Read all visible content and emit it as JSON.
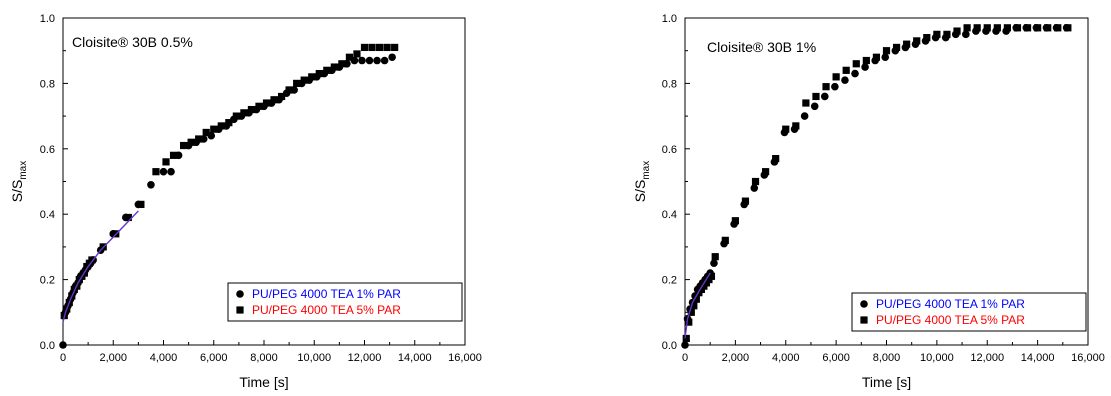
{
  "chart_data": [
    {
      "type": "scatter",
      "title": "",
      "annotation": "Cloisite® 30B 0.5%",
      "xlabel": "Time [s]",
      "ylabel_main": "S/S",
      "ylabel_sub": "max",
      "xlim": [
        0,
        16000
      ],
      "ylim": [
        0,
        1.0
      ],
      "xticks": [
        "0",
        "2,000",
        "4,000",
        "6,000",
        "8,000",
        "10,000",
        "12,000",
        "14,000",
        "16,000"
      ],
      "yticks": [
        "0.0",
        "0.2",
        "0.4",
        "0.6",
        "0.8",
        "1.0"
      ],
      "legend_position": "bottom-right",
      "fit_line": {
        "x": [
          0,
          100,
          300,
          600,
          1000,
          1500,
          2000,
          2500,
          3000
        ],
        "y": [
          0.07,
          0.1,
          0.14,
          0.19,
          0.24,
          0.29,
          0.33,
          0.37,
          0.41
        ],
        "color": "#6633cc"
      },
      "series": [
        {
          "name": "PU/PEG 4000 TEA 1% PAR",
          "marker": "circle",
          "color": "#0000ff",
          "x": [
            0,
            100,
            200,
            300,
            400,
            500,
            600,
            700,
            800,
            900,
            1000,
            1100,
            1200,
            1500,
            2000,
            2500,
            3000,
            3500,
            4000,
            4300,
            4600,
            5000,
            5300,
            5600,
            5900,
            6200,
            6500,
            6800,
            7100,
            7400,
            7700,
            8000,
            8300,
            8600,
            8900,
            9200,
            9500,
            9800,
            10100,
            10400,
            10700,
            11000,
            11300,
            11600,
            11900,
            12200,
            12500,
            12800,
            13100
          ],
          "y": [
            0.0,
            0.1,
            0.12,
            0.14,
            0.16,
            0.18,
            0.19,
            0.21,
            0.22,
            0.23,
            0.24,
            0.25,
            0.26,
            0.29,
            0.34,
            0.39,
            0.43,
            0.49,
            0.53,
            0.53,
            0.58,
            0.61,
            0.62,
            0.63,
            0.64,
            0.66,
            0.67,
            0.69,
            0.7,
            0.71,
            0.72,
            0.73,
            0.74,
            0.75,
            0.77,
            0.78,
            0.8,
            0.81,
            0.82,
            0.83,
            0.84,
            0.85,
            0.86,
            0.87,
            0.87,
            0.87,
            0.87,
            0.87,
            0.88
          ]
        },
        {
          "name": "PU/PEG 4000 TEA 5% PAR",
          "marker": "square",
          "color": "#ff0000",
          "x": [
            50,
            150,
            250,
            350,
            450,
            550,
            650,
            750,
            850,
            950,
            1050,
            1150,
            1600,
            2100,
            2600,
            3100,
            3700,
            4100,
            4400,
            4800,
            5100,
            5400,
            5700,
            6000,
            6300,
            6600,
            6900,
            7200,
            7500,
            7800,
            8100,
            8400,
            8700,
            9000,
            9300,
            9600,
            9900,
            10200,
            10500,
            10800,
            11100,
            11400,
            11700,
            12000,
            12300,
            12600,
            12900,
            13200
          ],
          "y": [
            0.09,
            0.11,
            0.13,
            0.15,
            0.17,
            0.18,
            0.2,
            0.21,
            0.22,
            0.24,
            0.25,
            0.26,
            0.3,
            0.34,
            0.39,
            0.43,
            0.53,
            0.56,
            0.58,
            0.61,
            0.62,
            0.63,
            0.65,
            0.66,
            0.67,
            0.68,
            0.7,
            0.71,
            0.72,
            0.73,
            0.74,
            0.75,
            0.76,
            0.78,
            0.8,
            0.81,
            0.82,
            0.83,
            0.84,
            0.85,
            0.86,
            0.88,
            0.89,
            0.91,
            0.91,
            0.91,
            0.91,
            0.91
          ]
        }
      ]
    },
    {
      "type": "scatter",
      "title": "",
      "annotation": "Cloisite® 30B 1%",
      "xlabel": "Time [s]",
      "ylabel_main": "S/S",
      "ylabel_sub": "max",
      "xlim": [
        0,
        16000
      ],
      "ylim": [
        0,
        1.0
      ],
      "xticks": [
        "0",
        "2,000",
        "4,000",
        "6,000",
        "8,000",
        "10,000",
        "12,000",
        "14,000",
        "16,000"
      ],
      "yticks": [
        "0.0",
        "0.2",
        "0.4",
        "0.6",
        "0.8",
        "1.0"
      ],
      "legend_position": "bottom-right",
      "fit_line": {
        "x": [
          0,
          100,
          300,
          600,
          1000
        ],
        "y": [
          0.02,
          0.08,
          0.13,
          0.17,
          0.22
        ],
        "color": "#6633cc"
      },
      "series": [
        {
          "name": "PU/PEG 4000 TEA 1% PAR",
          "marker": "circle",
          "color": "#0000ff",
          "x": [
            0,
            100,
            200,
            300,
            400,
            500,
            600,
            700,
            800,
            900,
            1000,
            1150,
            1550,
            1950,
            2350,
            2750,
            3150,
            3550,
            3950,
            4350,
            4750,
            5150,
            5550,
            5950,
            6350,
            6750,
            7150,
            7550,
            7950,
            8350,
            8750,
            9150,
            9550,
            9950,
            10350,
            10750,
            11150,
            11550,
            11950,
            12350,
            12750,
            13150,
            13550,
            13950,
            14350,
            14750,
            15150
          ],
          "y": [
            0.0,
            0.08,
            0.11,
            0.13,
            0.15,
            0.17,
            0.18,
            0.19,
            0.2,
            0.21,
            0.22,
            0.25,
            0.31,
            0.37,
            0.43,
            0.48,
            0.52,
            0.56,
            0.65,
            0.66,
            0.7,
            0.73,
            0.76,
            0.79,
            0.81,
            0.83,
            0.85,
            0.87,
            0.88,
            0.9,
            0.91,
            0.92,
            0.93,
            0.94,
            0.94,
            0.95,
            0.95,
            0.96,
            0.96,
            0.96,
            0.96,
            0.97,
            0.97,
            0.97,
            0.97,
            0.97,
            0.97
          ]
        },
        {
          "name": "PU/PEG 4000 TEA 5% PAR",
          "marker": "square",
          "color": "#ff0000",
          "x": [
            50,
            150,
            250,
            350,
            450,
            550,
            650,
            750,
            850,
            950,
            1050,
            1200,
            1600,
            2000,
            2400,
            2800,
            3200,
            3600,
            4000,
            4400,
            4800,
            5200,
            5600,
            6000,
            6400,
            6800,
            7200,
            7600,
            8000,
            8400,
            8800,
            9200,
            9600,
            10000,
            10400,
            10800,
            11200,
            11600,
            12000,
            12400,
            12800,
            13200,
            13600,
            14000,
            14400,
            14800,
            15200
          ],
          "y": [
            0.02,
            0.07,
            0.1,
            0.12,
            0.14,
            0.16,
            0.17,
            0.18,
            0.19,
            0.2,
            0.21,
            0.27,
            0.32,
            0.38,
            0.44,
            0.5,
            0.53,
            0.57,
            0.66,
            0.67,
            0.74,
            0.76,
            0.79,
            0.82,
            0.84,
            0.86,
            0.87,
            0.88,
            0.9,
            0.91,
            0.92,
            0.93,
            0.94,
            0.95,
            0.95,
            0.96,
            0.97,
            0.97,
            0.97,
            0.97,
            0.97,
            0.97,
            0.97,
            0.97,
            0.97,
            0.97,
            0.97
          ]
        }
      ]
    }
  ]
}
